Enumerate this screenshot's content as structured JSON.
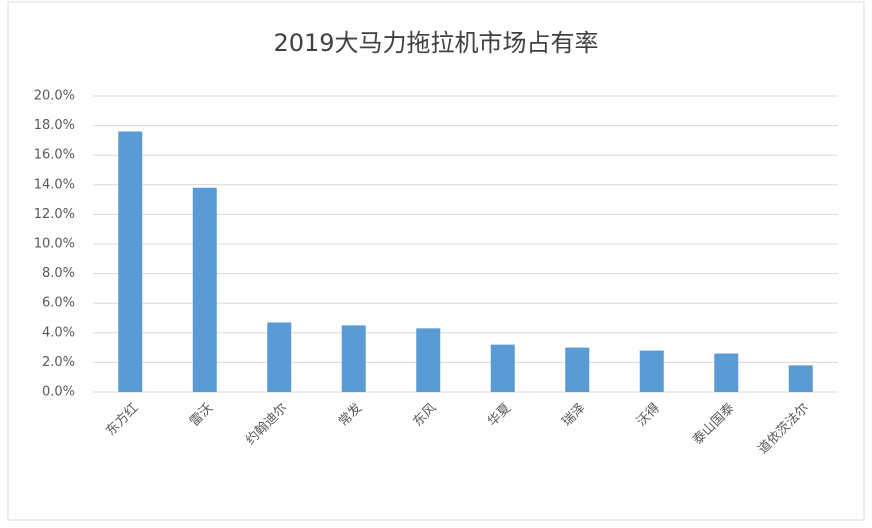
{
  "chart_data": {
    "type": "bar",
    "title": "2019大马力拖拉机市场占有率",
    "categories": [
      "东方红",
      "雷沃",
      "约翰迪尔",
      "常发",
      "东风",
      "华夏",
      "瑞泽",
      "沃得",
      "泰山国泰",
      "道依茨法尔"
    ],
    "values": [
      17.6,
      13.8,
      4.7,
      4.5,
      4.3,
      3.2,
      3.0,
      2.8,
      2.6,
      1.8
    ],
    "color": "#5b9bd5",
    "ylim": [
      0,
      20
    ],
    "yticks": [
      {
        "value": 0,
        "label": "0.0%"
      },
      {
        "value": 2,
        "label": "2.0%"
      },
      {
        "value": 4,
        "label": "4.0%"
      },
      {
        "value": 6,
        "label": "6.0%"
      },
      {
        "value": 8,
        "label": "8.0%"
      },
      {
        "value": 10,
        "label": "10.0%"
      },
      {
        "value": 12,
        "label": "12.0%"
      },
      {
        "value": 14,
        "label": "14.0%"
      },
      {
        "value": 16,
        "label": "16.0%"
      },
      {
        "value": 18,
        "label": "18.0%"
      },
      {
        "value": 20,
        "label": "20.0%"
      }
    ],
    "grid": true
  }
}
